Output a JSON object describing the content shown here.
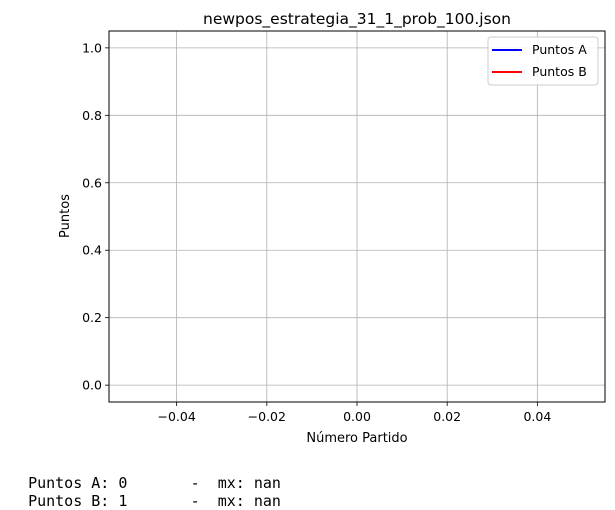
{
  "chart_data": {
    "type": "line",
    "title": "newpos_estrategia_31_1_prob_100.json",
    "xlabel": "Número Partido",
    "ylabel": "Puntos",
    "xlim": [
      -0.055,
      0.055
    ],
    "ylim": [
      -0.05,
      1.05
    ],
    "xticks": [
      -0.04,
      -0.02,
      0.0,
      0.02,
      0.04
    ],
    "xtick_labels": [
      "−0.04",
      "−0.02",
      "0.00",
      "0.02",
      "0.04"
    ],
    "yticks": [
      0.0,
      0.2,
      0.4,
      0.6,
      0.8,
      1.0
    ],
    "ytick_labels": [
      "0.0",
      "0.2",
      "0.4",
      "0.6",
      "0.8",
      "1.0"
    ],
    "grid": true,
    "legend_position": "top-right",
    "series": [
      {
        "name": "Puntos A",
        "color": "#0000ff",
        "x": [
          0
        ],
        "y": [
          0
        ]
      },
      {
        "name": "Puntos B",
        "color": "#ff0000",
        "x": [
          0
        ],
        "y": [
          1
        ]
      }
    ]
  },
  "footer": {
    "line_a": {
      "label": "Puntos A: 0",
      "sep": "-",
      "mx": "mx: nan"
    },
    "line_b": {
      "label": "Puntos B: 1",
      "sep": "-",
      "mx": "mx: nan"
    }
  }
}
